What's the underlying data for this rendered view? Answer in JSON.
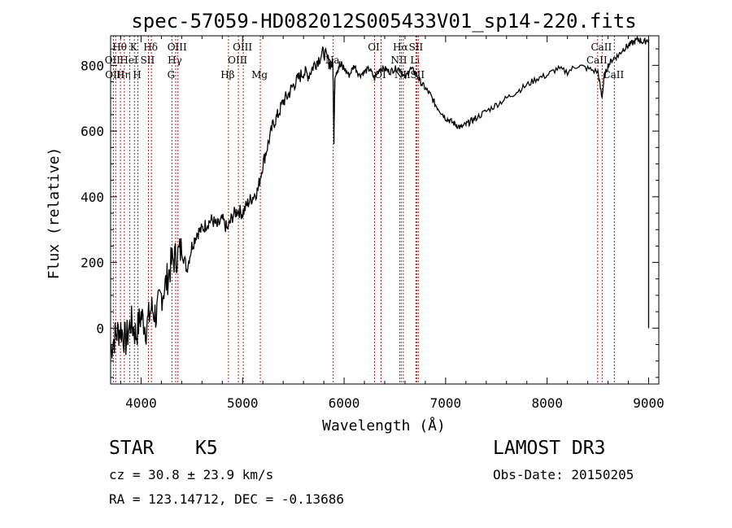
{
  "chart_data": {
    "type": "line",
    "title": "spec-57059-HD082012S005433V01_sp14-220.fits",
    "xlabel": "Wavelength (Å)",
    "ylabel": "Flux (relative)",
    "xlim": [
      3700,
      9100
    ],
    "ylim": [
      -170,
      890
    ],
    "xticks": [
      4000,
      5000,
      6000,
      7000,
      8000,
      9000
    ],
    "yticks": [
      0,
      200,
      400,
      600,
      800
    ],
    "series": [
      {
        "name": "spectrum",
        "x": [
          3700,
          3750,
          3800,
          3850,
          3900,
          3950,
          4000,
          4050,
          4100,
          4150,
          4200,
          4250,
          4300,
          4350,
          4400,
          4450,
          4500,
          4550,
          4600,
          4650,
          4700,
          4750,
          4800,
          4850,
          4900,
          4950,
          5000,
          5050,
          5100,
          5150,
          5200,
          5250,
          5300,
          5350,
          5400,
          5450,
          5500,
          5550,
          5600,
          5650,
          5700,
          5750,
          5800,
          5850,
          5890,
          5900,
          5910,
          5950,
          6000,
          6050,
          6100,
          6150,
          6200,
          6250,
          6300,
          6350,
          6400,
          6450,
          6500,
          6550,
          6600,
          6650,
          6700,
          6750,
          6800,
          6850,
          6900,
          6950,
          7000,
          7050,
          7100,
          7150,
          7200,
          7250,
          7300,
          7400,
          7500,
          7600,
          7700,
          7800,
          7900,
          8000,
          8100,
          8200,
          8300,
          8400,
          8500,
          8540,
          8560,
          8600,
          8650,
          8700,
          8750,
          8800,
          8850,
          8900,
          8950,
          9000
        ],
        "y": [
          -60,
          -20,
          0,
          -40,
          20,
          -20,
          40,
          0,
          60,
          40,
          100,
          140,
          200,
          220,
          240,
          180,
          250,
          290,
          300,
          320,
          330,
          310,
          330,
          300,
          340,
          360,
          350,
          380,
          400,
          420,
          500,
          560,
          620,
          650,
          690,
          710,
          740,
          760,
          780,
          770,
          800,
          820,
          840,
          810,
          800,
          580,
          780,
          800,
          790,
          770,
          800,
          770,
          780,
          790,
          760,
          790,
          790,
          780,
          790,
          790,
          760,
          790,
          780,
          750,
          730,
          710,
          680,
          660,
          640,
          630,
          620,
          610,
          620,
          630,
          640,
          660,
          680,
          700,
          720,
          740,
          760,
          770,
          790,
          780,
          800,
          790,
          780,
          700,
          760,
          800,
          820,
          830,
          850,
          860,
          870,
          880,
          870,
          880
        ]
      }
    ],
    "line_markers": [
      {
        "wavelength": 3727,
        "label": "OII",
        "row": 2
      },
      {
        "wavelength": 3750,
        "label": "OIII",
        "row": 3
      },
      {
        "wavelength": 3797,
        "label": "Hθ",
        "row": 1
      },
      {
        "wavelength": 3835,
        "label": "Hη",
        "row": 3
      },
      {
        "wavelength": 3889,
        "label": "HeI",
        "row": 2
      },
      {
        "wavelength": 3934,
        "label": "K",
        "row": 1
      },
      {
        "wavelength": 3969,
        "label": "H",
        "row": 3
      },
      {
        "wavelength": 4072,
        "label": "SII",
        "row": 2
      },
      {
        "wavelength": 4102,
        "label": "Hδ",
        "row": 1
      },
      {
        "wavelength": 4304,
        "label": "G",
        "row": 3
      },
      {
        "wavelength": 4341,
        "label": "Hγ",
        "row": 2
      },
      {
        "wavelength": 4363,
        "label": "OIII",
        "row": 1
      },
      {
        "wavelength": 4861,
        "label": "Hβ",
        "row": 3
      },
      {
        "wavelength": 4959,
        "label": "OIII",
        "row": 2
      },
      {
        "wavelength": 5007,
        "label": "OIII",
        "row": 1
      },
      {
        "wavelength": 5175,
        "label": "Mg",
        "row": 3
      },
      {
        "wavelength": 5893,
        "label": "Na",
        "row": 2
      },
      {
        "wavelength": 6300,
        "label": "OI",
        "row": 1
      },
      {
        "wavelength": 6364,
        "label": "OI",
        "row": 3
      },
      {
        "wavelength": 6548,
        "label": "NII",
        "row": 2
      },
      {
        "wavelength": 6563,
        "label": "Hα",
        "row": 1
      },
      {
        "wavelength": 6583,
        "label": "NII",
        "row": 3
      },
      {
        "wavelength": 6707,
        "label": "Li",
        "row": 2
      },
      {
        "wavelength": 6716,
        "label": "SII",
        "row": 1
      },
      {
        "wavelength": 6731,
        "label": "SII",
        "row": 3
      },
      {
        "wavelength": 8498,
        "label": "CaII",
        "row": 2
      },
      {
        "wavelength": 8542,
        "label": "CaII",
        "row": 1
      },
      {
        "wavelength": 8662,
        "label": "CaII",
        "row": 3
      }
    ]
  },
  "info": {
    "class_label": "STAR",
    "subclass": "K5",
    "survey": "LAMOST DR3",
    "cz": "cz = 30.8 ± 23.9 km/s",
    "obs_date": "Obs-Date: 20150205",
    "coords": "RA = 123.14712, DEC =  -0.13686"
  }
}
